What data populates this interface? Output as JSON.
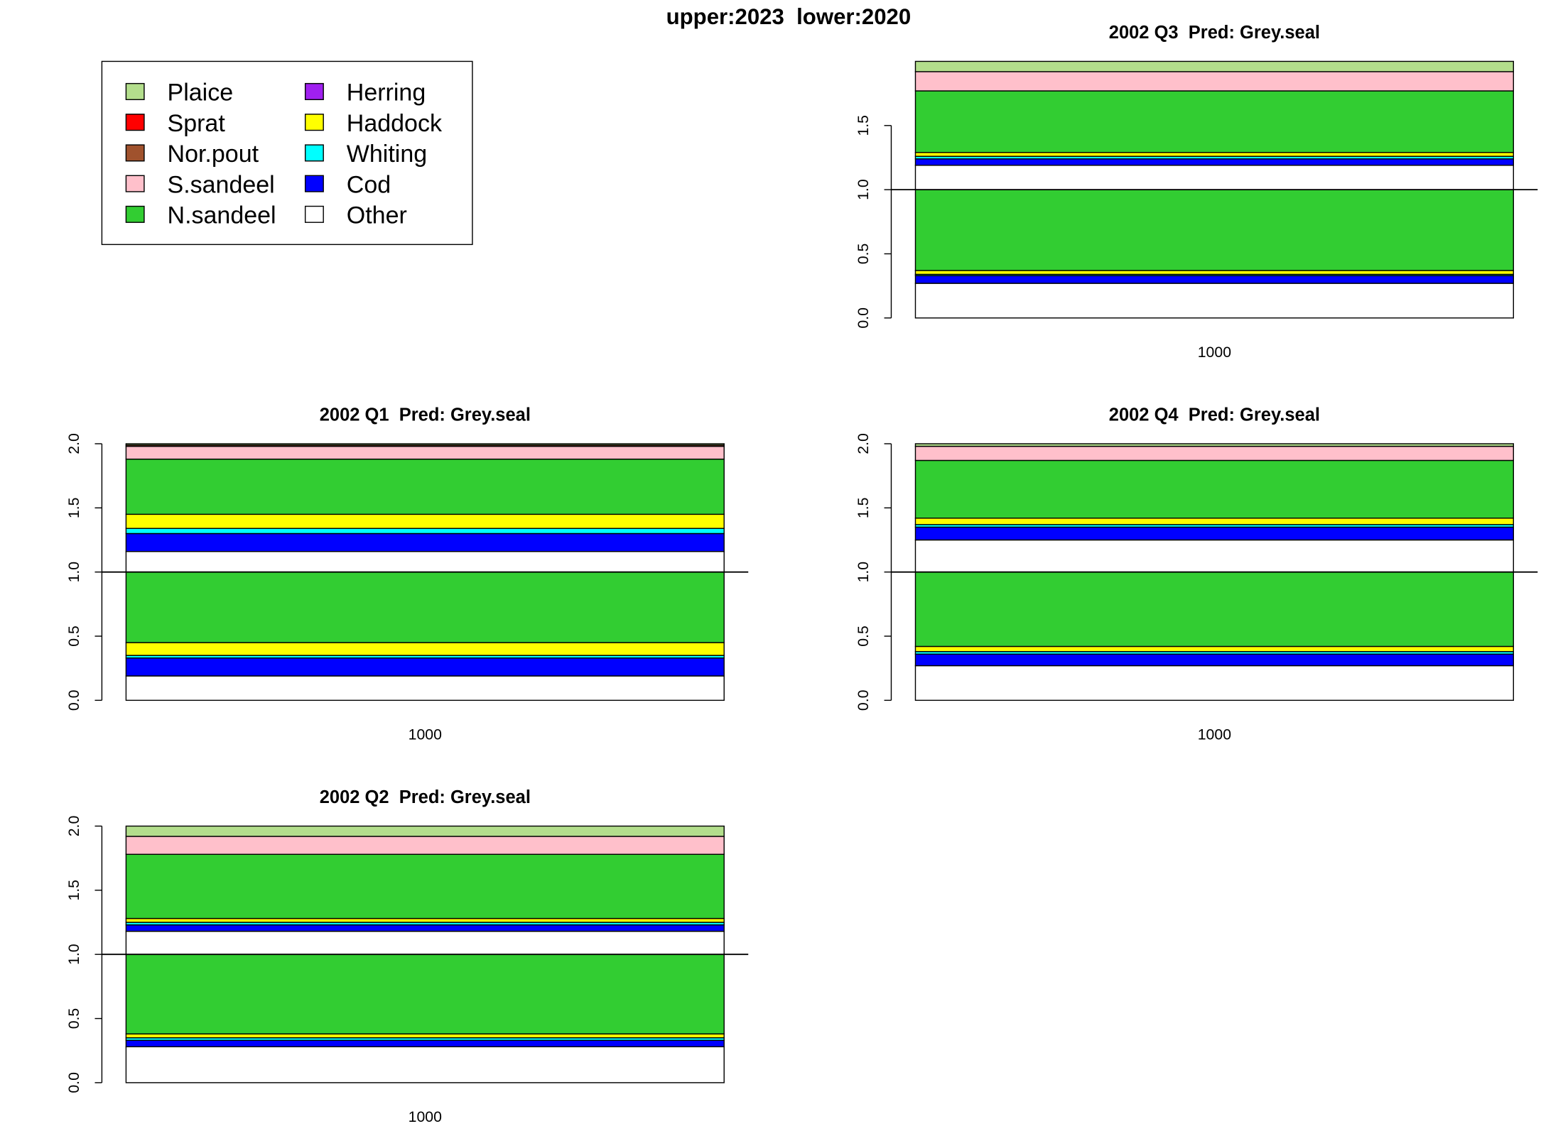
{
  "title": "upper:2023  lower:2020",
  "chart_data": [
    {
      "type": "bar",
      "title": "2002 Q3  Pred: Grey.seal",
      "categories": [
        "1000"
      ],
      "ylim": [
        0,
        2
      ],
      "yticks": [
        0,
        0.5,
        1,
        1.5
      ],
      "hline": 1,
      "series": [
        {
          "name": "Other",
          "color": "#ffffff",
          "values": [
            0.27
          ],
          "upper_values": [
            0.19
          ]
        },
        {
          "name": "Cod",
          "color": "#0000ff",
          "values": [
            0.06
          ],
          "upper_values": [
            0.05
          ]
        },
        {
          "name": "Whiting",
          "color": "#00ffff",
          "values": [
            0.01
          ],
          "upper_values": [
            0.02
          ]
        },
        {
          "name": "Haddock",
          "color": "#ffff00",
          "values": [
            0.03
          ],
          "upper_values": [
            0.03
          ]
        },
        {
          "name": "Herring",
          "color": "#a020f0",
          "values": [
            0
          ],
          "upper_values": [
            0
          ]
        },
        {
          "name": "N.sandeel",
          "color": "#32cd32",
          "values": [
            0.63
          ],
          "upper_values": [
            0.48
          ]
        },
        {
          "name": "S.sandeel",
          "color": "#ffc0cb",
          "values": [
            0
          ],
          "upper_values": [
            0.15
          ]
        },
        {
          "name": "Nor.pout",
          "color": "#a0522d",
          "values": [
            0
          ],
          "upper_values": [
            0
          ]
        },
        {
          "name": "Sprat",
          "color": "#ff0000",
          "values": [
            0
          ],
          "upper_values": [
            0
          ]
        },
        {
          "name": "Plaice",
          "color": "#b3de8c",
          "values": [
            0
          ],
          "upper_values": [
            0.08
          ]
        }
      ]
    },
    {
      "type": "bar",
      "title": "2002 Q1  Pred: Grey.seal",
      "categories": [
        "1000"
      ],
      "ylim": [
        0,
        2
      ],
      "yticks": [
        0,
        0.5,
        1,
        1.5,
        2
      ],
      "hline": 1,
      "series": [
        {
          "name": "Other",
          "color": "#ffffff",
          "values": [
            0.19
          ],
          "upper_values": [
            0.16
          ]
        },
        {
          "name": "Cod",
          "color": "#0000ff",
          "values": [
            0.14
          ],
          "upper_values": [
            0.14
          ]
        },
        {
          "name": "Whiting",
          "color": "#00ffff",
          "values": [
            0.02
          ],
          "upper_values": [
            0.04
          ]
        },
        {
          "name": "Haddock",
          "color": "#ffff00",
          "values": [
            0.1
          ],
          "upper_values": [
            0.11
          ]
        },
        {
          "name": "Herring",
          "color": "#a020f0",
          "values": [
            0
          ],
          "upper_values": [
            0
          ]
        },
        {
          "name": "N.sandeel",
          "color": "#32cd32",
          "values": [
            0.55
          ],
          "upper_values": [
            0.43
          ]
        },
        {
          "name": "S.sandeel",
          "color": "#ffc0cb",
          "values": [
            0
          ],
          "upper_values": [
            0.1
          ]
        },
        {
          "name": "Nor.pout",
          "color": "#a0522d",
          "values": [
            0
          ],
          "upper_values": [
            0.01
          ]
        },
        {
          "name": "Sprat",
          "color": "#ff0000",
          "values": [
            0
          ],
          "upper_values": [
            0
          ]
        },
        {
          "name": "Plaice",
          "color": "#b3de8c",
          "values": [
            0
          ],
          "upper_values": [
            0.01
          ]
        }
      ]
    },
    {
      "type": "bar",
      "title": "2002 Q4  Pred: Grey.seal",
      "categories": [
        "1000"
      ],
      "ylim": [
        0,
        2
      ],
      "yticks": [
        0,
        0.5,
        1,
        1.5,
        2
      ],
      "hline": 1,
      "series": [
        {
          "name": "Other",
          "color": "#ffffff",
          "values": [
            0.27
          ],
          "upper_values": [
            0.25
          ]
        },
        {
          "name": "Cod",
          "color": "#0000ff",
          "values": [
            0.09
          ],
          "upper_values": [
            0.1
          ]
        },
        {
          "name": "Whiting",
          "color": "#00ffff",
          "values": [
            0.02
          ],
          "upper_values": [
            0.02
          ]
        },
        {
          "name": "Haddock",
          "color": "#ffff00",
          "values": [
            0.04
          ],
          "upper_values": [
            0.05
          ]
        },
        {
          "name": "Herring",
          "color": "#a020f0",
          "values": [
            0
          ],
          "upper_values": [
            0
          ]
        },
        {
          "name": "N.sandeel",
          "color": "#32cd32",
          "values": [
            0.58
          ],
          "upper_values": [
            0.45
          ]
        },
        {
          "name": "S.sandeel",
          "color": "#ffc0cb",
          "values": [
            0
          ],
          "upper_values": [
            0.11
          ]
        },
        {
          "name": "Nor.pout",
          "color": "#a0522d",
          "values": [
            0
          ],
          "upper_values": [
            0
          ]
        },
        {
          "name": "Sprat",
          "color": "#ff0000",
          "values": [
            0
          ],
          "upper_values": [
            0
          ]
        },
        {
          "name": "Plaice",
          "color": "#b3de8c",
          "values": [
            0
          ],
          "upper_values": [
            0.02
          ]
        }
      ]
    },
    {
      "type": "bar",
      "title": "2002 Q2  Pred: Grey.seal",
      "categories": [
        "1000"
      ],
      "ylim": [
        0,
        2
      ],
      "yticks": [
        0,
        0.5,
        1,
        1.5,
        2
      ],
      "hline": 1,
      "series": [
        {
          "name": "Other",
          "color": "#ffffff",
          "values": [
            0.28
          ],
          "upper_values": [
            0.18
          ]
        },
        {
          "name": "Cod",
          "color": "#0000ff",
          "values": [
            0.05
          ],
          "upper_values": [
            0.05
          ]
        },
        {
          "name": "Whiting",
          "color": "#00ffff",
          "values": [
            0.02
          ],
          "upper_values": [
            0.02
          ]
        },
        {
          "name": "Haddock",
          "color": "#ffff00",
          "values": [
            0.03
          ],
          "upper_values": [
            0.03
          ]
        },
        {
          "name": "Herring",
          "color": "#a020f0",
          "values": [
            0
          ],
          "upper_values": [
            0
          ]
        },
        {
          "name": "N.sandeel",
          "color": "#32cd32",
          "values": [
            0.62
          ],
          "upper_values": [
            0.5
          ]
        },
        {
          "name": "S.sandeel",
          "color": "#ffc0cb",
          "values": [
            0
          ],
          "upper_values": [
            0.14
          ]
        },
        {
          "name": "Nor.pout",
          "color": "#a0522d",
          "values": [
            0
          ],
          "upper_values": [
            0
          ]
        },
        {
          "name": "Sprat",
          "color": "#ff0000",
          "values": [
            0
          ],
          "upper_values": [
            0
          ]
        },
        {
          "name": "Plaice",
          "color": "#b3de8c",
          "values": [
            0
          ],
          "upper_values": [
            0.08
          ]
        }
      ]
    }
  ]
}
